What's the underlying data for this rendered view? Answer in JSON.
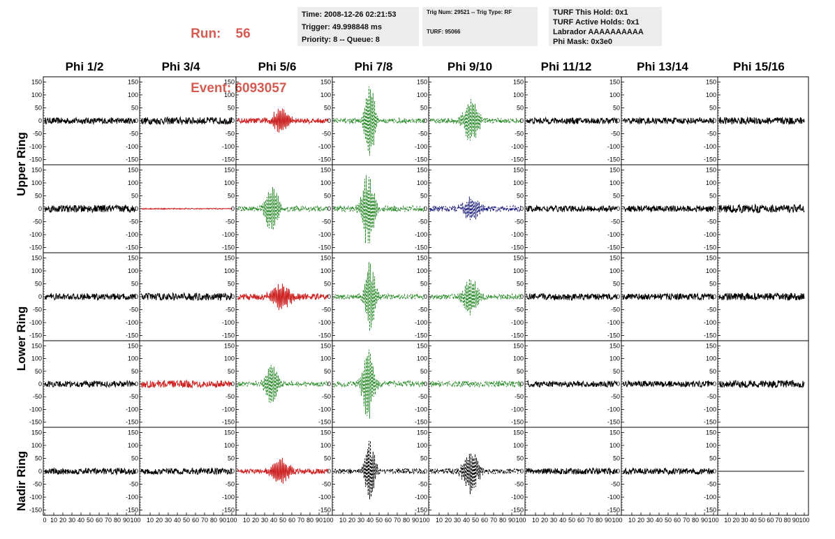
{
  "header": {
    "run_label": "Run:",
    "run_value": "56",
    "event_label": "Event:",
    "event_value": "6093057",
    "time": "Time: 2008-12-26 02:21:53",
    "trigger": "Trigger: 49.998848 ms",
    "priority": "Priority: 8 -- Queue: 8",
    "trig_num": "Trig Num: 29521 -- Trig Type: RF",
    "turf": "TURF: 95066",
    "turf_this_hold": "TURF This Hold: 0x1",
    "turf_active_holds": "TURF Active Holds: 0x1",
    "labrador": "Labrador AAAAAAAAAA",
    "phi_mask": "Phi Mask: 0x3e0"
  },
  "columns": [
    "Phi 1/2",
    "Phi 3/4",
    "Phi 5/6",
    "Phi 7/8",
    "Phi 9/10",
    "Phi 11/12",
    "Phi 13/14",
    "Phi 15/16"
  ],
  "rings": [
    {
      "label": "Upper Ring"
    },
    {
      "label": "Lower Ring"
    },
    {
      "label": "Nadir Ring"
    }
  ],
  "colors": {
    "noise": "#000000",
    "red": "#cc2222",
    "green": "#2a8a2a",
    "blue": "#1a1a7a",
    "header_red": "#d45b52",
    "info_bg": "#ececec"
  },
  "chart_data": {
    "type": "line",
    "ylim": [
      -170,
      170
    ],
    "yticks": [
      150,
      100,
      50,
      0,
      -50,
      -100,
      -150
    ],
    "xlim": [
      0,
      100
    ],
    "xtick_labels": [
      "0",
      "10",
      "20",
      "30",
      "40",
      "50",
      "60",
      "70",
      "80",
      "90",
      "100"
    ],
    "panels": [
      [
        {
          "color": "noise",
          "style": "solid",
          "amp": 12,
          "burst": 0,
          "center": 0,
          "width": 0
        },
        {
          "color": "noise",
          "style": "solid",
          "amp": 14,
          "burst": 0,
          "center": 0,
          "width": 0
        },
        {
          "color": "red",
          "style": "solid",
          "amp": 10,
          "burst": 45,
          "center": 48,
          "width": 10
        },
        {
          "color": "green",
          "style": "dashed",
          "amp": 10,
          "burst": 140,
          "center": 40,
          "width": 6
        },
        {
          "color": "green",
          "style": "dashed",
          "amp": 10,
          "burst": 80,
          "center": 45,
          "width": 9
        },
        {
          "color": "noise",
          "style": "solid",
          "amp": 12,
          "burst": 0,
          "center": 0,
          "width": 0
        },
        {
          "color": "noise",
          "style": "solid",
          "amp": 12,
          "burst": 0,
          "center": 0,
          "width": 0
        },
        {
          "color": "noise",
          "style": "solid",
          "amp": 14,
          "burst": 0,
          "center": 0,
          "width": 0
        }
      ],
      [
        {
          "color": "noise",
          "style": "solid",
          "amp": 14,
          "burst": 0,
          "center": 0,
          "width": 0
        },
        {
          "color": "red",
          "style": "solid",
          "amp": 2,
          "burst": 0,
          "center": 0,
          "width": 0
        },
        {
          "color": "green",
          "style": "dashed",
          "amp": 10,
          "burst": 90,
          "center": 38,
          "width": 8
        },
        {
          "color": "green",
          "style": "dashed",
          "amp": 12,
          "burst": 150,
          "center": 38,
          "width": 7
        },
        {
          "color": "blue",
          "style": "dashed",
          "amp": 12,
          "burst": 40,
          "center": 45,
          "width": 10
        },
        {
          "color": "noise",
          "style": "solid",
          "amp": 12,
          "burst": 0,
          "center": 0,
          "width": 0
        },
        {
          "color": "noise",
          "style": "solid",
          "amp": 12,
          "burst": 0,
          "center": 0,
          "width": 0
        },
        {
          "color": "noise",
          "style": "solid",
          "amp": 16,
          "burst": 0,
          "center": 0,
          "width": 0
        }
      ],
      [
        {
          "color": "noise",
          "style": "solid",
          "amp": 12,
          "burst": 0,
          "center": 0,
          "width": 0
        },
        {
          "color": "noise",
          "style": "solid",
          "amp": 14,
          "burst": 0,
          "center": 0,
          "width": 0
        },
        {
          "color": "red",
          "style": "solid",
          "amp": 12,
          "burst": 45,
          "center": 48,
          "width": 12
        },
        {
          "color": "green",
          "style": "dashed",
          "amp": 10,
          "burst": 140,
          "center": 40,
          "width": 6
        },
        {
          "color": "green",
          "style": "dashed",
          "amp": 10,
          "burst": 70,
          "center": 45,
          "width": 9
        },
        {
          "color": "noise",
          "style": "solid",
          "amp": 12,
          "burst": 0,
          "center": 0,
          "width": 0
        },
        {
          "color": "noise",
          "style": "solid",
          "amp": 12,
          "burst": 0,
          "center": 0,
          "width": 0
        },
        {
          "color": "noise",
          "style": "solid",
          "amp": 14,
          "burst": 0,
          "center": 0,
          "width": 0
        }
      ],
      [
        {
          "color": "noise",
          "style": "solid",
          "amp": 12,
          "burst": 0,
          "center": 0,
          "width": 0
        },
        {
          "color": "red",
          "style": "solid",
          "amp": 14,
          "burst": 0,
          "center": 0,
          "width": 0
        },
        {
          "color": "green",
          "style": "dashed",
          "amp": 10,
          "burst": 75,
          "center": 38,
          "width": 8
        },
        {
          "color": "green",
          "style": "dashed",
          "amp": 12,
          "burst": 140,
          "center": 38,
          "width": 7
        },
        {
          "color": "green",
          "style": "dashed",
          "amp": 12,
          "burst": 0,
          "center": 0,
          "width": 0
        },
        {
          "color": "noise",
          "style": "solid",
          "amp": 12,
          "burst": 0,
          "center": 0,
          "width": 0
        },
        {
          "color": "noise",
          "style": "solid",
          "amp": 12,
          "burst": 0,
          "center": 0,
          "width": 0
        },
        {
          "color": "noise",
          "style": "solid",
          "amp": 14,
          "burst": 0,
          "center": 0,
          "width": 0
        }
      ],
      [
        {
          "color": "noise",
          "style": "solid",
          "amp": 12,
          "burst": 0,
          "center": 0,
          "width": 0
        },
        {
          "color": "noise",
          "style": "solid",
          "amp": 12,
          "burst": 0,
          "center": 0,
          "width": 0
        },
        {
          "color": "red",
          "style": "solid",
          "amp": 10,
          "burst": 45,
          "center": 48,
          "width": 10
        },
        {
          "color": "noise",
          "style": "dashed",
          "amp": 10,
          "burst": 120,
          "center": 40,
          "width": 6
        },
        {
          "color": "noise",
          "style": "dashed",
          "amp": 10,
          "burst": 80,
          "center": 45,
          "width": 9
        },
        {
          "color": "noise",
          "style": "solid",
          "amp": 12,
          "burst": 0,
          "center": 0,
          "width": 0
        },
        {
          "color": "noise",
          "style": "solid",
          "amp": 12,
          "burst": 0,
          "center": 0,
          "width": 0
        },
        {
          "color": "noise",
          "style": "solid",
          "amp": 0,
          "burst": 0,
          "center": 0,
          "width": 0
        }
      ]
    ]
  }
}
